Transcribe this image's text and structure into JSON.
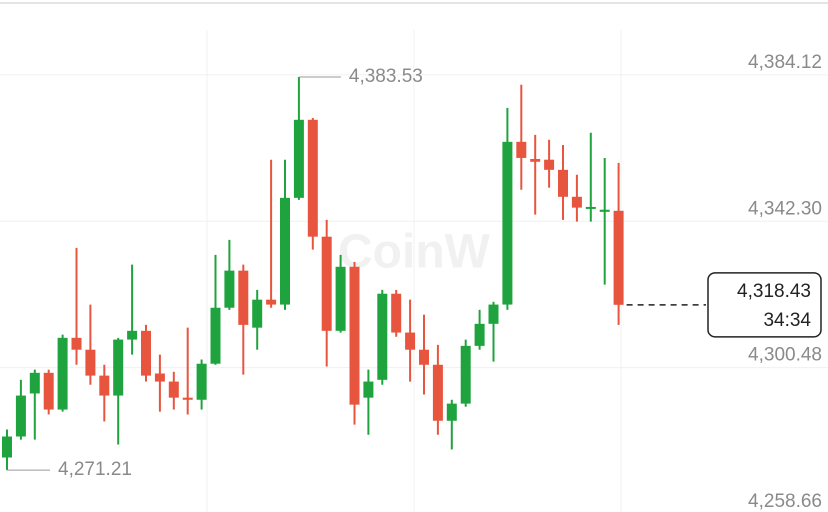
{
  "chart_data": {
    "type": "candlestick",
    "watermark": "CoinW",
    "up_color": "#1fa33f",
    "down_color": "#e8553e",
    "ylim": [
      4259.23,
      4405.53
    ],
    "yticks": [
      {
        "value": 4384.12,
        "label": "4,384.12"
      },
      {
        "value": 4342.3,
        "label": "4,342.30"
      },
      {
        "value": 4300.48,
        "label": "4,300.48"
      },
      {
        "value": 4258.66,
        "label": "4,258.66"
      }
    ],
    "grid": true,
    "series": {
      "open": [
        4274.8,
        4280.8,
        4293.1,
        4299.0,
        4288.5,
        4309.0,
        4305.6,
        4298.2,
        4292.5,
        4308.5,
        4311.0,
        4298.8,
        4296.5,
        4291.9,
        4291.3,
        4301.6,
        4317.6,
        4328.2,
        4311.9,
        4319.9,
        4318.5,
        4349.0,
        4371.3,
        4337.9,
        4311.0,
        4329.3,
        4291.9,
        4297.0,
        4321.6,
        4310.5,
        4305.6,
        4301.3,
        4285.3,
        4290.2,
        4306.7,
        4313.0,
        4318.5,
        4365.0,
        4360.1,
        4359.9,
        4357.0,
        4349.3,
        4345.9,
        4345.0,
        4345.3
      ],
      "high": [
        4282.8,
        4297.0,
        4299.9,
        4299.9,
        4309.9,
        4334.7,
        4318.5,
        4301.3,
        4309.0,
        4329.9,
        4312.7,
        4304.2,
        4299.3,
        4311.9,
        4302.8,
        4332.7,
        4337.0,
        4329.9,
        4322.7,
        4359.9,
        4359.9,
        4383.53,
        4371.8,
        4342.7,
        4332.7,
        4330.7,
        4299.9,
        4322.7,
        4322.7,
        4319.9,
        4315.6,
        4307.0,
        4291.3,
        4308.5,
        4317.0,
        4319.3,
        4374.7,
        4381.3,
        4367.0,
        4365.6,
        4364.1,
        4355.6,
        4367.6,
        4360.4,
        4359.0
      ],
      "low": [
        4271.21,
        4279.9,
        4279.9,
        4287.1,
        4287.9,
        4301.3,
        4295.6,
        4285.1,
        4278.5,
        4304.2,
        4296.5,
        4287.9,
        4288.5,
        4287.1,
        4288.5,
        4301.3,
        4317.0,
        4298.5,
        4305.6,
        4317.6,
        4317.0,
        4348.4,
        4334.2,
        4300.8,
        4310.5,
        4284.2,
        4281.3,
        4295.6,
        4309.3,
        4296.5,
        4292.8,
        4281.3,
        4277.1,
        4289.3,
        4305.6,
        4302.2,
        4317.0,
        4351.3,
        4344.2,
        4351.9,
        4342.7,
        4342.2,
        4342.2,
        4324.2,
        4312.7
      ],
      "close": [
        4280.8,
        4292.5,
        4299.0,
        4288.5,
        4309.0,
        4305.6,
        4298.2,
        4292.5,
        4308.5,
        4311.0,
        4298.2,
        4296.5,
        4291.9,
        4291.3,
        4301.6,
        4317.6,
        4328.2,
        4312.7,
        4319.9,
        4318.5,
        4349.0,
        4371.3,
        4337.9,
        4311.0,
        4329.3,
        4289.9,
        4296.5,
        4321.6,
        4310.5,
        4305.6,
        4301.3,
        4285.3,
        4290.2,
        4306.7,
        4313.0,
        4318.5,
        4365.0,
        4360.4,
        4359.3,
        4357.0,
        4349.3,
        4346.2,
        4346.4,
        4345.6,
        4318.43
      ]
    },
    "max_marker": {
      "value": 4383.53,
      "label": "4,383.53"
    },
    "min_marker": {
      "value": 4271.21,
      "label": "4,271.21"
    },
    "last_price": {
      "value": 4318.43,
      "label": "4,318.43"
    },
    "countdown": "34:34"
  }
}
